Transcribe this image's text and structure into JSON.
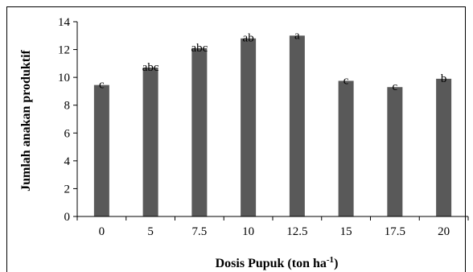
{
  "chart_data": {
    "type": "bar",
    "title": "",
    "xlabel": "Dosis Pupuk (ton ha",
    "xlabel_sup": "-1",
    "xlabel_suffix": ")",
    "ylabel": "Jumlah anakan produktif",
    "categories": [
      "0",
      "5",
      "7.5",
      "10",
      "12.5",
      "15",
      "17.5",
      "20"
    ],
    "values": [
      9.45,
      10.7,
      12.1,
      12.8,
      13.0,
      9.75,
      9.3,
      9.9
    ],
    "labels": [
      "c",
      "abc",
      "abc",
      "ab",
      "a",
      "c",
      "c",
      "b"
    ],
    "ylim": [
      0,
      14
    ],
    "yticks": [
      "0",
      "2",
      "4",
      "6",
      "8",
      "10",
      "12",
      "14"
    ],
    "grid": false,
    "legend": "none",
    "bar_color": "#595959"
  }
}
